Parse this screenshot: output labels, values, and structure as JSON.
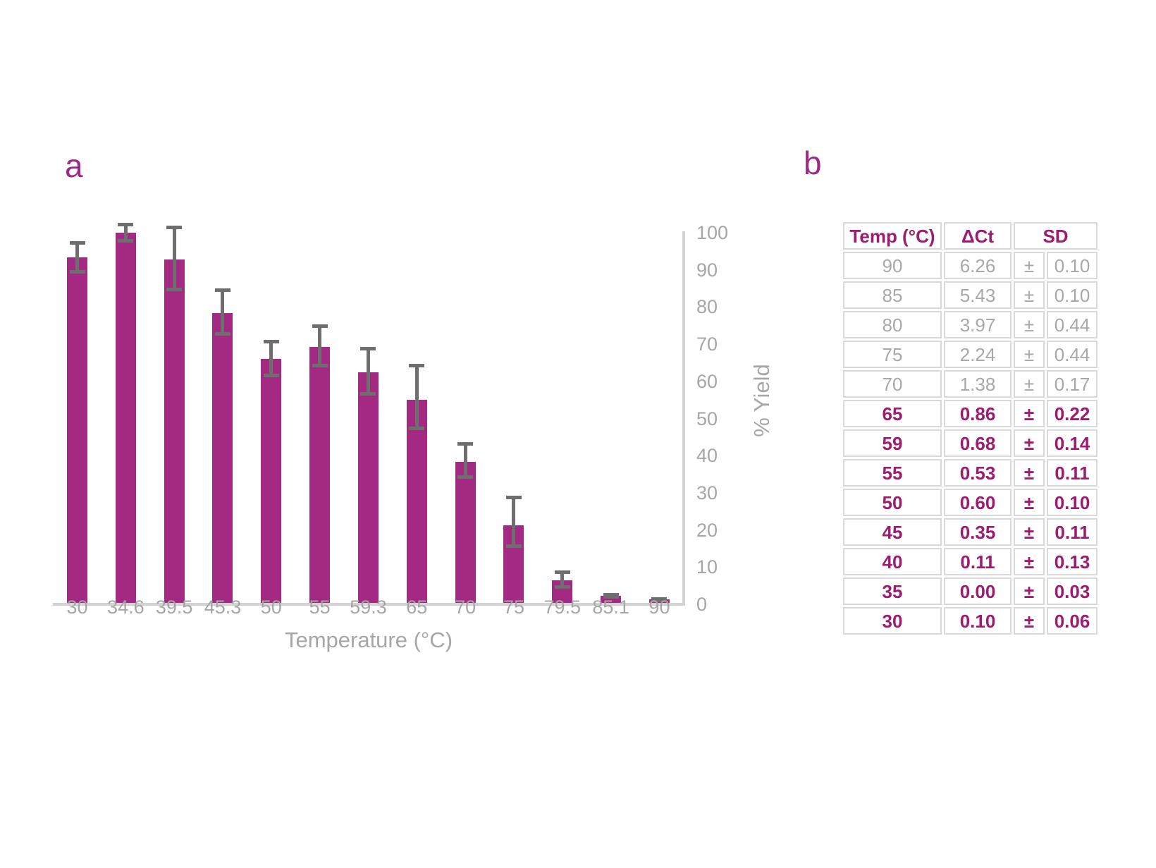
{
  "panel_a": {
    "label": "a"
  },
  "panel_b": {
    "label": "b"
  },
  "colors": {
    "bar_fill": "#A42982",
    "accent_text": "#9C2B83",
    "table_purple_text": "#9E1C70",
    "muted_gray_text": "#A6A6A6",
    "error_bar_gray": "#6E6E6E",
    "axis_line_gray": "#D2D2D2",
    "table_border_gray": "#D9D9D9"
  },
  "chart_data": {
    "type": "bar",
    "title": "",
    "xlabel": "Temperature (°C)",
    "ylabel": "% Yield",
    "categories": [
      "30",
      "34.6",
      "39.5",
      "45.3",
      "50",
      "55",
      "59.3",
      "65",
      "70",
      "75",
      "79.5",
      "85.1",
      "90"
    ],
    "values": [
      93.3,
      100.0,
      92.7,
      78.4,
      66.0,
      69.3,
      62.4,
      55.1,
      38.4,
      21.2,
      6.4,
      2.3,
      1.3
    ],
    "error_up": [
      4.0,
      2.1,
      8.7,
      6.2,
      4.7,
      5.5,
      6.4,
      9.1,
      4.8,
      7.5,
      2.3,
      0.3,
      0.2
    ],
    "error_down": [
      3.8,
      2.1,
      8.0,
      5.7,
      4.4,
      5.1,
      5.8,
      7.8,
      4.2,
      5.6,
      1.7,
      0.3,
      0.2
    ],
    "ylim": [
      0,
      100
    ],
    "yticks": [
      0,
      10,
      20,
      30,
      40,
      50,
      60,
      70,
      80,
      90,
      100
    ],
    "grid": false,
    "legend_position": "none",
    "y_axis_side": "right"
  },
  "table": {
    "headers": {
      "temp": "Temp (°C)",
      "dct": "ΔCt",
      "sd": "SD"
    },
    "plus_minus": "±",
    "rows": [
      {
        "temp": "90",
        "dct": "6.26",
        "sd": "0.10",
        "emphasis": false
      },
      {
        "temp": "85",
        "dct": "5.43",
        "sd": "0.10",
        "emphasis": false
      },
      {
        "temp": "80",
        "dct": "3.97",
        "sd": "0.44",
        "emphasis": false
      },
      {
        "temp": "75",
        "dct": "2.24",
        "sd": "0.44",
        "emphasis": false
      },
      {
        "temp": "70",
        "dct": "1.38",
        "sd": "0.17",
        "emphasis": false
      },
      {
        "temp": "65",
        "dct": "0.86",
        "sd": "0.22",
        "emphasis": true
      },
      {
        "temp": "59",
        "dct": "0.68",
        "sd": "0.14",
        "emphasis": true
      },
      {
        "temp": "55",
        "dct": "0.53",
        "sd": "0.11",
        "emphasis": true
      },
      {
        "temp": "50",
        "dct": "0.60",
        "sd": "0.10",
        "emphasis": true
      },
      {
        "temp": "45",
        "dct": "0.35",
        "sd": "0.11",
        "emphasis": true
      },
      {
        "temp": "40",
        "dct": "0.11",
        "sd": "0.13",
        "emphasis": true
      },
      {
        "temp": "35",
        "dct": "0.00",
        "sd": "0.03",
        "emphasis": true
      },
      {
        "temp": "30",
        "dct": "0.10",
        "sd": "0.06",
        "emphasis": true
      }
    ]
  }
}
